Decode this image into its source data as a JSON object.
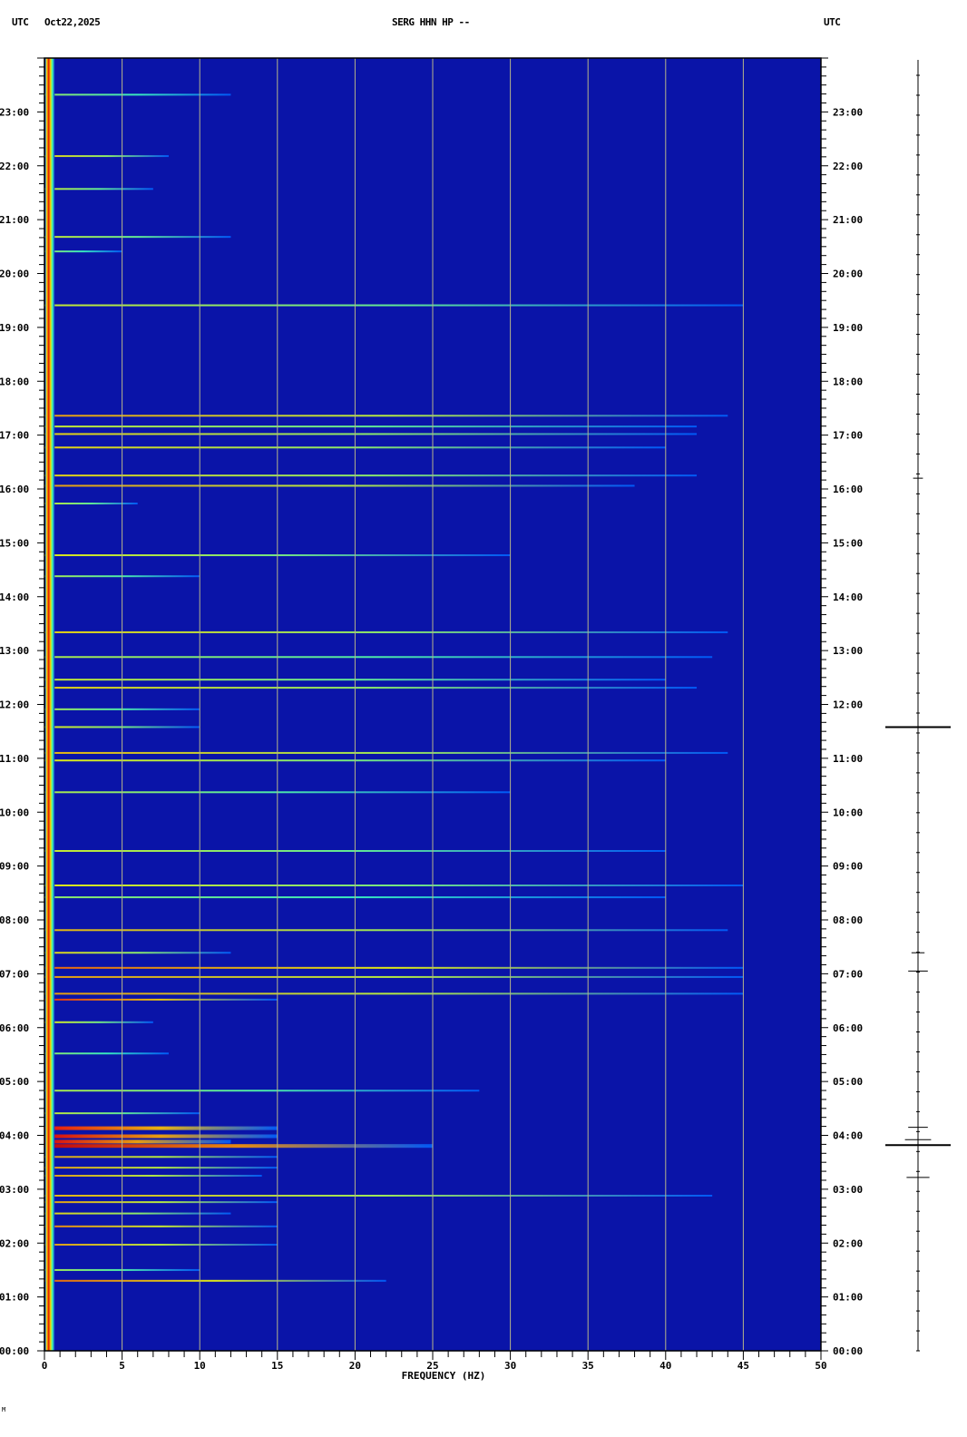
{
  "header": {
    "left_tz": "UTC",
    "date": "Oct22,2025",
    "station": "SERG HHN HP --",
    "right_tz": "UTC"
  },
  "corner_mark": "M",
  "chart_data": {
    "type": "heatmap",
    "subtype": "spectrogram",
    "xlabel": "FREQUENCY (HZ)",
    "xlim": [
      0,
      50
    ],
    "x_ticks": [
      "0",
      "5",
      "10",
      "15",
      "20",
      "25",
      "30",
      "35",
      "40",
      "45",
      "50"
    ],
    "x_minor_step": 1,
    "ylim_hours": [
      0,
      24
    ],
    "y_ticks": [
      "00:00",
      "01:00",
      "02:00",
      "03:00",
      "04:00",
      "05:00",
      "06:00",
      "07:00",
      "08:00",
      "09:00",
      "10:00",
      "11:00",
      "12:00",
      "13:00",
      "14:00",
      "15:00",
      "16:00",
      "17:00",
      "18:00",
      "19:00",
      "20:00",
      "21:00",
      "22:00",
      "23:00"
    ],
    "y_minor_step_minutes": 10,
    "grid": true,
    "colormap": "jet",
    "background_color": "#0a14a8",
    "grid_color": "#b5b58a",
    "persistent_band": {
      "freq_range": [
        0,
        0.6
      ],
      "intensity": 1.0
    },
    "bands": [
      {
        "hour": 23.32,
        "f": [
          0,
          12
        ],
        "i": 0.3
      },
      {
        "hour": 22.18,
        "f": [
          0,
          8
        ],
        "i": 0.5
      },
      {
        "hour": 21.57,
        "f": [
          0,
          7
        ],
        "i": 0.4
      },
      {
        "hour": 20.68,
        "f": [
          0,
          12
        ],
        "i": 0.4
      },
      {
        "hour": 20.41,
        "f": [
          0,
          5
        ],
        "i": 0.3
      },
      {
        "hour": 19.41,
        "f": [
          0,
          45
        ],
        "i": 0.4
      },
      {
        "hour": 17.36,
        "f": [
          0,
          44
        ],
        "i": 0.6
      },
      {
        "hour": 17.16,
        "f": [
          0,
          42
        ],
        "i": 0.4
      },
      {
        "hour": 17.02,
        "f": [
          0,
          42
        ],
        "i": 0.5
      },
      {
        "hour": 16.77,
        "f": [
          0,
          40
        ],
        "i": 0.5
      },
      {
        "hour": 16.25,
        "f": [
          0,
          42
        ],
        "i": 0.5
      },
      {
        "hour": 16.06,
        "f": [
          0,
          38
        ],
        "i": 0.6
      },
      {
        "hour": 15.73,
        "f": [
          0,
          6
        ],
        "i": 0.4
      },
      {
        "hour": 14.77,
        "f": [
          0,
          30
        ],
        "i": 0.45
      },
      {
        "hour": 14.38,
        "f": [
          0,
          10
        ],
        "i": 0.35
      },
      {
        "hour": 13.34,
        "f": [
          0,
          44
        ],
        "i": 0.5
      },
      {
        "hour": 12.88,
        "f": [
          0,
          43
        ],
        "i": 0.35
      },
      {
        "hour": 12.46,
        "f": [
          0,
          40
        ],
        "i": 0.4
      },
      {
        "hour": 12.31,
        "f": [
          0,
          42
        ],
        "i": 0.5
      },
      {
        "hour": 11.91,
        "f": [
          0,
          10
        ],
        "i": 0.35
      },
      {
        "hour": 11.58,
        "f": [
          0,
          10
        ],
        "i": 0.45
      },
      {
        "hour": 11.1,
        "f": [
          0,
          44
        ],
        "i": 0.55
      },
      {
        "hour": 10.96,
        "f": [
          0,
          40
        ],
        "i": 0.45
      },
      {
        "hour": 10.37,
        "f": [
          0,
          30
        ],
        "i": 0.35
      },
      {
        "hour": 9.28,
        "f": [
          0,
          40
        ],
        "i": 0.4
      },
      {
        "hour": 8.64,
        "f": [
          0,
          45
        ],
        "i": 0.45
      },
      {
        "hour": 8.42,
        "f": [
          0,
          40
        ],
        "i": 0.3
      },
      {
        "hour": 7.81,
        "f": [
          0,
          44
        ],
        "i": 0.55
      },
      {
        "hour": 7.39,
        "f": [
          0,
          12
        ],
        "i": 0.5
      },
      {
        "hour": 7.11,
        "f": [
          0,
          45
        ],
        "i": 0.7
      },
      {
        "hour": 6.94,
        "f": [
          0,
          45
        ],
        "i": 0.6
      },
      {
        "hour": 6.63,
        "f": [
          0,
          45
        ],
        "i": 0.6
      },
      {
        "hour": 6.52,
        "f": [
          0,
          15
        ],
        "i": 0.8
      },
      {
        "hour": 6.1,
        "f": [
          0,
          7
        ],
        "i": 0.45
      },
      {
        "hour": 5.52,
        "f": [
          0,
          8
        ],
        "i": 0.3
      },
      {
        "hour": 4.83,
        "f": [
          0,
          28
        ],
        "i": 0.35
      },
      {
        "hour": 4.41,
        "f": [
          0,
          10
        ],
        "i": 0.4
      },
      {
        "hour": 4.15,
        "f": [
          0,
          15
        ],
        "i": 0.85
      },
      {
        "hour": 4.0,
        "f": [
          0,
          15
        ],
        "i": 0.9
      },
      {
        "hour": 3.9,
        "f": [
          0,
          12
        ],
        "i": 0.9
      },
      {
        "hour": 3.82,
        "f": [
          0,
          25
        ],
        "i": 0.95
      },
      {
        "hour": 3.6,
        "f": [
          0,
          15
        ],
        "i": 0.6
      },
      {
        "hour": 3.4,
        "f": [
          0,
          15
        ],
        "i": 0.6
      },
      {
        "hour": 3.25,
        "f": [
          0,
          14
        ],
        "i": 0.6
      },
      {
        "hour": 2.88,
        "f": [
          0,
          43
        ],
        "i": 0.55
      },
      {
        "hour": 2.76,
        "f": [
          0,
          15
        ],
        "i": 0.6
      },
      {
        "hour": 2.55,
        "f": [
          0,
          12
        ],
        "i": 0.5
      },
      {
        "hour": 2.31,
        "f": [
          0,
          15
        ],
        "i": 0.65
      },
      {
        "hour": 1.97,
        "f": [
          0,
          15
        ],
        "i": 0.6
      },
      {
        "hour": 1.5,
        "f": [
          0,
          10
        ],
        "i": 0.35
      },
      {
        "hour": 1.3,
        "f": [
          0,
          22
        ],
        "i": 0.7
      }
    ],
    "trace_events": [
      {
        "hour": 16.2,
        "amp": 0.15
      },
      {
        "hour": 11.58,
        "amp": 1.0
      },
      {
        "hour": 7.39,
        "amp": 0.2
      },
      {
        "hour": 7.05,
        "amp": 0.3
      },
      {
        "hour": 4.15,
        "amp": 0.3
      },
      {
        "hour": 3.92,
        "amp": 0.4
      },
      {
        "hour": 3.82,
        "amp": 1.0
      },
      {
        "hour": 3.22,
        "amp": 0.35
      }
    ]
  }
}
